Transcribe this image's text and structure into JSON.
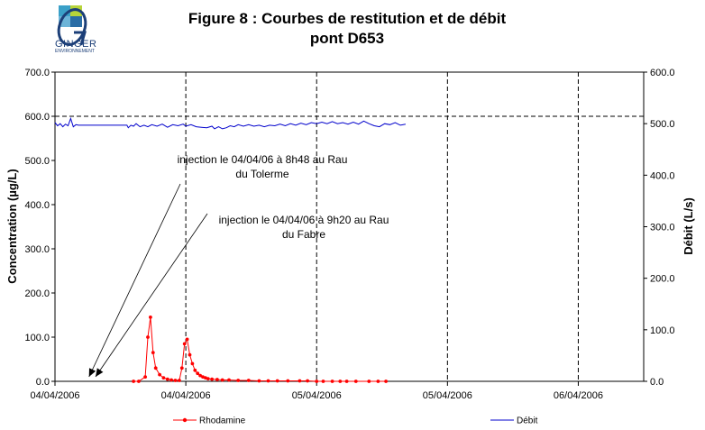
{
  "logo": {
    "name": "GINGER",
    "tagline": "ENVIRONNEMENT"
  },
  "chart_data": {
    "type": "line",
    "title_line1": "Figure 8 : Courbes de restitution et de débit",
    "title_line2": "pont D653",
    "x_tick_labels": [
      "04/04/2006",
      "04/04/2006",
      "05/04/2006",
      "05/04/2006",
      "06/04/2006"
    ],
    "x_range": [
      0,
      4.5
    ],
    "ylabel_left": "Concentration (µg/L)",
    "ylabel_right": "Débit (L/s)",
    "ylim_left": [
      0,
      700
    ],
    "ylim_right": [
      0,
      600
    ],
    "y_ticks_left": [
      "0.0",
      "100.0",
      "200.0",
      "300.0",
      "400.0",
      "500.0",
      "600.0",
      "700.0"
    ],
    "y_ticks_right": [
      "0.0",
      "100.0",
      "200.0",
      "300.0",
      "400.0",
      "500.0",
      "600.0"
    ],
    "grid": "dashed vertical at each x tick, dashed horizontal at 600",
    "legend_placement": "bottom",
    "series": [
      {
        "name": "Rhodamine",
        "axis": "left",
        "color": "#ff0000",
        "marker": "circle",
        "points": [
          [
            0.6,
            0
          ],
          [
            0.64,
            0
          ],
          [
            0.69,
            10
          ],
          [
            0.71,
            100
          ],
          [
            0.73,
            145
          ],
          [
            0.75,
            65
          ],
          [
            0.77,
            30
          ],
          [
            0.8,
            15
          ],
          [
            0.83,
            8
          ],
          [
            0.86,
            5
          ],
          [
            0.89,
            3
          ],
          [
            0.92,
            2
          ],
          [
            0.95,
            2
          ],
          [
            0.97,
            30
          ],
          [
            0.99,
            85
          ],
          [
            1.01,
            95
          ],
          [
            1.03,
            60
          ],
          [
            1.05,
            40
          ],
          [
            1.07,
            25
          ],
          [
            1.09,
            18
          ],
          [
            1.11,
            13
          ],
          [
            1.13,
            10
          ],
          [
            1.15,
            8
          ],
          [
            1.17,
            6
          ],
          [
            1.2,
            5
          ],
          [
            1.24,
            4
          ],
          [
            1.28,
            3
          ],
          [
            1.33,
            3
          ],
          [
            1.4,
            2
          ],
          [
            1.48,
            2
          ],
          [
            1.56,
            1
          ],
          [
            1.63,
            1
          ],
          [
            1.7,
            1
          ],
          [
            1.78,
            1
          ],
          [
            1.87,
            1
          ],
          [
            1.93,
            1
          ],
          [
            2.0,
            0
          ],
          [
            2.05,
            0
          ],
          [
            2.12,
            0
          ],
          [
            2.18,
            0
          ],
          [
            2.23,
            0
          ],
          [
            2.3,
            0
          ],
          [
            2.4,
            0
          ],
          [
            2.47,
            0
          ],
          [
            2.53,
            0
          ]
        ]
      },
      {
        "name": "Débit",
        "axis": "right",
        "color": "#0000cc",
        "marker": "none",
        "points": [
          [
            0.0,
            502
          ],
          [
            0.02,
            496
          ],
          [
            0.04,
            500
          ],
          [
            0.06,
            494
          ],
          [
            0.08,
            499
          ],
          [
            0.1,
            496
          ],
          [
            0.12,
            510
          ],
          [
            0.14,
            494
          ],
          [
            0.16,
            498
          ],
          [
            0.18,
            497
          ],
          [
            0.2,
            497
          ],
          [
            0.4,
            497
          ],
          [
            0.55,
            497
          ],
          [
            0.56,
            492
          ],
          [
            0.58,
            497
          ],
          [
            0.6,
            495
          ],
          [
            0.62,
            500
          ],
          [
            0.65,
            494
          ],
          [
            0.68,
            497
          ],
          [
            0.71,
            494
          ],
          [
            0.74,
            498
          ],
          [
            0.78,
            495
          ],
          [
            0.82,
            499
          ],
          [
            0.86,
            493
          ],
          [
            0.9,
            498
          ],
          [
            0.94,
            496
          ],
          [
            0.98,
            499
          ],
          [
            1.0,
            495
          ],
          [
            1.04,
            498
          ],
          [
            1.08,
            494
          ],
          [
            1.12,
            493
          ],
          [
            1.16,
            492
          ],
          [
            1.2,
            495
          ],
          [
            1.22,
            490
          ],
          [
            1.25,
            494
          ],
          [
            1.28,
            490
          ],
          [
            1.31,
            492
          ],
          [
            1.34,
            496
          ],
          [
            1.37,
            494
          ],
          [
            1.4,
            498
          ],
          [
            1.44,
            495
          ],
          [
            1.48,
            498
          ],
          [
            1.52,
            495
          ],
          [
            1.56,
            497
          ],
          [
            1.6,
            494
          ],
          [
            1.64,
            497
          ],
          [
            1.68,
            496
          ],
          [
            1.72,
            499
          ],
          [
            1.76,
            496
          ],
          [
            1.8,
            500
          ],
          [
            1.84,
            497
          ],
          [
            1.88,
            501
          ],
          [
            1.92,
            498
          ],
          [
            1.96,
            502
          ],
          [
            2.0,
            500
          ],
          [
            2.04,
            503
          ],
          [
            2.08,
            500
          ],
          [
            2.12,
            504
          ],
          [
            2.16,
            500
          ],
          [
            2.2,
            502
          ],
          [
            2.24,
            499
          ],
          [
            2.28,
            503
          ],
          [
            2.32,
            499
          ],
          [
            2.36,
            505
          ],
          [
            2.4,
            500
          ],
          [
            2.44,
            496
          ],
          [
            2.48,
            494
          ],
          [
            2.52,
            500
          ],
          [
            2.56,
            498
          ],
          [
            2.6,
            502
          ],
          [
            2.64,
            497
          ],
          [
            2.68,
            499
          ]
        ]
      }
    ],
    "annotations": [
      {
        "id": "a1",
        "line1": "injection le 04/04/06 à 8h48 au Rau",
        "line2": "du Tolerme",
        "target_x": 0.26
      },
      {
        "id": "a2",
        "line1": "injection le 04/04/06 à 9h20 au Rau",
        "line2": "du Fabre",
        "target_x": 0.31
      }
    ]
  }
}
